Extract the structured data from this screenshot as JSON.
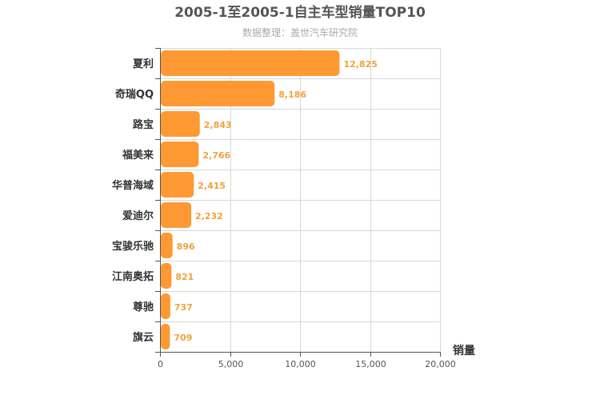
{
  "chart_data": {
    "type": "bar",
    "orientation": "horizontal",
    "title": "2005-1至2005-1自主车型销量TOP10",
    "subtitle": "数据整理：盖世汽车研究院",
    "xlabel": "销量",
    "ylabel": "",
    "categories": [
      "夏利",
      "奇瑞QQ",
      "路宝",
      "福美来",
      "华普海域",
      "爱迪尔",
      "宝骏乐驰",
      "江南奥拓",
      "尊驰",
      "旗云"
    ],
    "values": [
      12825,
      8186,
      2843,
      2766,
      2415,
      2232,
      896,
      821,
      737,
      709
    ],
    "data_labels": [
      "12,825",
      "8,186",
      "2,843",
      "2,766",
      "2,415",
      "2,232",
      "896",
      "821",
      "737",
      "709"
    ],
    "xlim": [
      0,
      20000
    ],
    "x_ticks": [
      0,
      5000,
      10000,
      15000,
      20000
    ],
    "x_tick_labels": [
      "0",
      "5,000",
      "10,000",
      "15,000",
      "20,000"
    ],
    "grid": true,
    "legend": "none",
    "colors": {
      "bar": "#ff9933",
      "data_label": "#f0a23c"
    }
  }
}
